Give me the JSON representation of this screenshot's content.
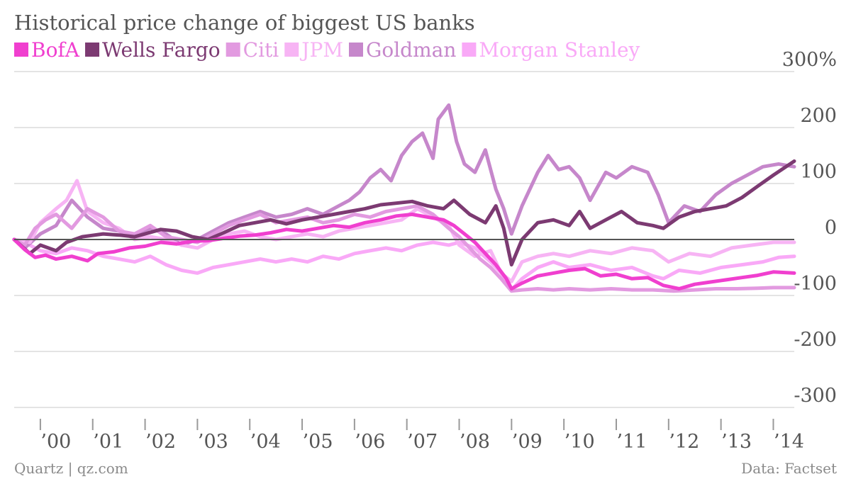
{
  "chart_data": {
    "type": "line",
    "title": "Historical price change of biggest US banks",
    "xlabel": "",
    "ylabel": "",
    "source": "Data: Factset",
    "credit": "Quartz | qz.com",
    "ylim": [
      -300,
      300
    ],
    "xlim": [
      1999.5,
      2014.4
    ],
    "y_ticks": [
      {
        "value": 300,
        "label": "300%"
      },
      {
        "value": 200,
        "label": "200"
      },
      {
        "value": 100,
        "label": "100"
      },
      {
        "value": 0,
        "label": "0"
      },
      {
        "value": -100,
        "label": "-100"
      },
      {
        "value": -200,
        "label": "-200"
      },
      {
        "value": -300,
        "label": "-300"
      }
    ],
    "x_ticks": [
      {
        "value": 2000,
        "label": "’00"
      },
      {
        "value": 2001,
        "label": "’01"
      },
      {
        "value": 2002,
        "label": "’02"
      },
      {
        "value": 2003,
        "label": "’03"
      },
      {
        "value": 2004,
        "label": "’04"
      },
      {
        "value": 2005,
        "label": "’05"
      },
      {
        "value": 2006,
        "label": "’06"
      },
      {
        "value": 2007,
        "label": "’07"
      },
      {
        "value": 2008,
        "label": "’08"
      },
      {
        "value": 2009,
        "label": "’09"
      },
      {
        "value": 2010,
        "label": "’10"
      },
      {
        "value": 2011,
        "label": "’11"
      },
      {
        "value": 2012,
        "label": "’12"
      },
      {
        "value": 2013,
        "label": "’13"
      },
      {
        "value": 2014,
        "label": "’14"
      }
    ],
    "grid": true,
    "legend_position": "top-left",
    "series": [
      {
        "name": "BofA",
        "color": "#f03fcf",
        "x": [
          1999.5,
          1999.7,
          1999.9,
          2000.1,
          2000.3,
          2000.6,
          2000.9,
          2001.1,
          2001.4,
          2001.7,
          2002.0,
          2002.3,
          2002.6,
          2002.9,
          2003.2,
          2003.5,
          2003.8,
          2004.1,
          2004.4,
          2004.7,
          2005.0,
          2005.3,
          2005.6,
          2005.9,
          2006.2,
          2006.5,
          2006.8,
          2007.1,
          2007.4,
          2007.7,
          2007.9,
          2008.1,
          2008.3,
          2008.5,
          2008.7,
          2008.9,
          2009.0,
          2009.2,
          2009.5,
          2009.8,
          2010.1,
          2010.4,
          2010.7,
          2011.0,
          2011.3,
          2011.6,
          2011.9,
          2012.2,
          2012.5,
          2012.8,
          2013.1,
          2013.4,
          2013.7,
          2014.0,
          2014.4
        ],
        "values": [
          0,
          -18,
          -32,
          -28,
          -35,
          -30,
          -38,
          -25,
          -22,
          -15,
          -12,
          -5,
          -8,
          -3,
          -2,
          2,
          6,
          8,
          12,
          18,
          15,
          20,
          25,
          22,
          30,
          35,
          42,
          45,
          40,
          35,
          25,
          10,
          -5,
          -25,
          -45,
          -70,
          -88,
          -78,
          -65,
          -60,
          -55,
          -52,
          -65,
          -62,
          -70,
          -68,
          -82,
          -88,
          -80,
          -76,
          -72,
          -68,
          -64,
          -58,
          -60
        ]
      },
      {
        "name": "Wells Fargo",
        "color": "#7c3a72",
        "x": [
          1999.5,
          1999.8,
          2000.0,
          2000.3,
          2000.5,
          2000.8,
          2001.2,
          2001.5,
          2001.8,
          2002.0,
          2002.3,
          2002.6,
          2002.9,
          2003.2,
          2003.5,
          2003.8,
          2004.1,
          2004.4,
          2004.7,
          2005.0,
          2005.3,
          2005.6,
          2005.9,
          2006.2,
          2006.5,
          2006.8,
          2007.1,
          2007.4,
          2007.7,
          2007.9,
          2008.2,
          2008.5,
          2008.7,
          2008.85,
          2009.0,
          2009.2,
          2009.5,
          2009.8,
          2010.1,
          2010.3,
          2010.5,
          2010.8,
          2011.1,
          2011.4,
          2011.7,
          2011.9,
          2012.2,
          2012.5,
          2012.8,
          2013.1,
          2013.4,
          2013.7,
          2014.0,
          2014.4
        ],
        "values": [
          0,
          -25,
          -10,
          -20,
          -5,
          5,
          10,
          8,
          5,
          10,
          18,
          15,
          5,
          0,
          12,
          25,
          30,
          35,
          28,
          35,
          40,
          45,
          50,
          55,
          62,
          65,
          68,
          60,
          55,
          70,
          45,
          30,
          60,
          20,
          -45,
          0,
          30,
          35,
          25,
          50,
          20,
          35,
          50,
          30,
          25,
          20,
          40,
          50,
          55,
          60,
          75,
          95,
          115,
          140
        ]
      },
      {
        "name": "Citi",
        "color": "#e29ae0",
        "x": [
          1999.5,
          1999.7,
          1999.9,
          2000.1,
          2000.3,
          2000.6,
          2000.9,
          2001.2,
          2001.5,
          2001.8,
          2002.1,
          2002.4,
          2002.7,
          2003.0,
          2003.3,
          2003.6,
          2003.9,
          2004.2,
          2004.5,
          2004.8,
          2005.1,
          2005.4,
          2005.7,
          2006.0,
          2006.3,
          2006.6,
          2006.9,
          2007.2,
          2007.5,
          2007.8,
          2008.0,
          2008.2,
          2008.4,
          2008.6,
          2008.8,
          2009.0,
          2009.2,
          2009.5,
          2009.8,
          2010.1,
          2010.5,
          2010.9,
          2011.3,
          2011.7,
          2012.1,
          2012.5,
          2012.9,
          2013.3,
          2013.7,
          2014.0,
          2014.4
        ],
        "values": [
          0,
          -10,
          20,
          35,
          45,
          20,
          55,
          40,
          15,
          10,
          25,
          5,
          0,
          -5,
          10,
          25,
          35,
          45,
          30,
          35,
          40,
          30,
          35,
          45,
          40,
          50,
          55,
          60,
          45,
          20,
          5,
          -15,
          -35,
          -50,
          -70,
          -92,
          -90,
          -88,
          -90,
          -88,
          -90,
          -88,
          -90,
          -90,
          -92,
          -90,
          -88,
          -88,
          -87,
          -86,
          -86
        ]
      },
      {
        "name": "JPM",
        "color": "#f7b4f4",
        "x": [
          1999.5,
          1999.8,
          2000.0,
          2000.3,
          2000.5,
          2000.7,
          2000.9,
          2001.2,
          2001.5,
          2001.8,
          2002.1,
          2002.4,
          2002.7,
          2003.0,
          2003.3,
          2003.6,
          2003.9,
          2004.2,
          2004.5,
          2004.8,
          2005.1,
          2005.4,
          2005.7,
          2006.0,
          2006.3,
          2006.6,
          2006.9,
          2007.2,
          2007.5,
          2007.8,
          2008.0,
          2008.3,
          2008.6,
          2008.8,
          2009.0,
          2009.2,
          2009.5,
          2009.8,
          2010.1,
          2010.5,
          2010.9,
          2011.3,
          2011.7,
          2012.0,
          2012.4,
          2012.8,
          2013.2,
          2013.6,
          2014.0,
          2014.4
        ],
        "values": [
          0,
          -5,
          30,
          55,
          70,
          105,
          50,
          30,
          20,
          0,
          5,
          0,
          -10,
          -15,
          0,
          10,
          15,
          5,
          0,
          5,
          10,
          5,
          15,
          20,
          25,
          30,
          35,
          55,
          40,
          25,
          -10,
          -30,
          -20,
          -60,
          -75,
          -40,
          -30,
          -25,
          -30,
          -20,
          -25,
          -15,
          -20,
          -40,
          -25,
          -30,
          -15,
          -10,
          -5,
          -5
        ]
      },
      {
        "name": "Goldman",
        "color": "#c687cb",
        "x": [
          1999.5,
          1999.7,
          2000.0,
          2000.3,
          2000.6,
          2000.9,
          2001.2,
          2001.5,
          2001.8,
          2002.1,
          2002.4,
          2002.7,
          2003.0,
          2003.3,
          2003.6,
          2003.9,
          2004.2,
          2004.5,
          2004.8,
          2005.1,
          2005.4,
          2005.7,
          2005.9,
          2006.1,
          2006.3,
          2006.5,
          2006.7,
          2006.9,
          2007.1,
          2007.3,
          2007.5,
          2007.6,
          2007.8,
          2007.95,
          2008.1,
          2008.3,
          2008.5,
          2008.7,
          2008.85,
          2009.0,
          2009.2,
          2009.5,
          2009.7,
          2009.9,
          2010.1,
          2010.3,
          2010.5,
          2010.8,
          2011.0,
          2011.3,
          2011.6,
          2011.8,
          2012.0,
          2012.3,
          2012.6,
          2012.9,
          2013.2,
          2013.5,
          2013.8,
          2014.1,
          2014.4
        ],
        "values": [
          0,
          -15,
          10,
          25,
          70,
          40,
          20,
          15,
          5,
          20,
          10,
          -10,
          0,
          15,
          30,
          40,
          50,
          40,
          45,
          55,
          45,
          60,
          70,
          85,
          110,
          125,
          105,
          150,
          175,
          190,
          145,
          215,
          240,
          175,
          135,
          120,
          160,
          90,
          55,
          10,
          60,
          120,
          150,
          125,
          130,
          110,
          70,
          120,
          110,
          130,
          120,
          80,
          30,
          60,
          50,
          80,
          100,
          115,
          130,
          135,
          130
        ]
      },
      {
        "name": "Morgan Stanley",
        "color": "#f9a9f7",
        "x": [
          1999.5,
          1999.8,
          2000.0,
          2000.3,
          2000.6,
          2000.9,
          2001.2,
          2001.5,
          2001.8,
          2002.1,
          2002.4,
          2002.7,
          2003.0,
          2003.3,
          2003.6,
          2003.9,
          2004.2,
          2004.5,
          2004.8,
          2005.1,
          2005.4,
          2005.7,
          2006.0,
          2006.3,
          2006.6,
          2006.9,
          2007.2,
          2007.5,
          2007.8,
          2008.0,
          2008.3,
          2008.6,
          2008.8,
          2009.0,
          2009.2,
          2009.5,
          2009.8,
          2010.1,
          2010.5,
          2010.9,
          2011.3,
          2011.7,
          2011.9,
          2012.2,
          2012.6,
          2013.0,
          2013.4,
          2013.8,
          2014.1,
          2014.4
        ],
        "values": [
          0,
          -10,
          -20,
          -25,
          -15,
          -20,
          -30,
          -35,
          -40,
          -30,
          -45,
          -55,
          -60,
          -50,
          -45,
          -40,
          -35,
          -40,
          -35,
          -40,
          -30,
          -35,
          -25,
          -20,
          -15,
          -20,
          -10,
          -5,
          -10,
          -5,
          -15,
          -40,
          -60,
          -90,
          -70,
          -50,
          -40,
          -50,
          -45,
          -55,
          -50,
          -65,
          -70,
          -55,
          -60,
          -50,
          -45,
          -40,
          -32,
          -30
        ]
      }
    ]
  }
}
